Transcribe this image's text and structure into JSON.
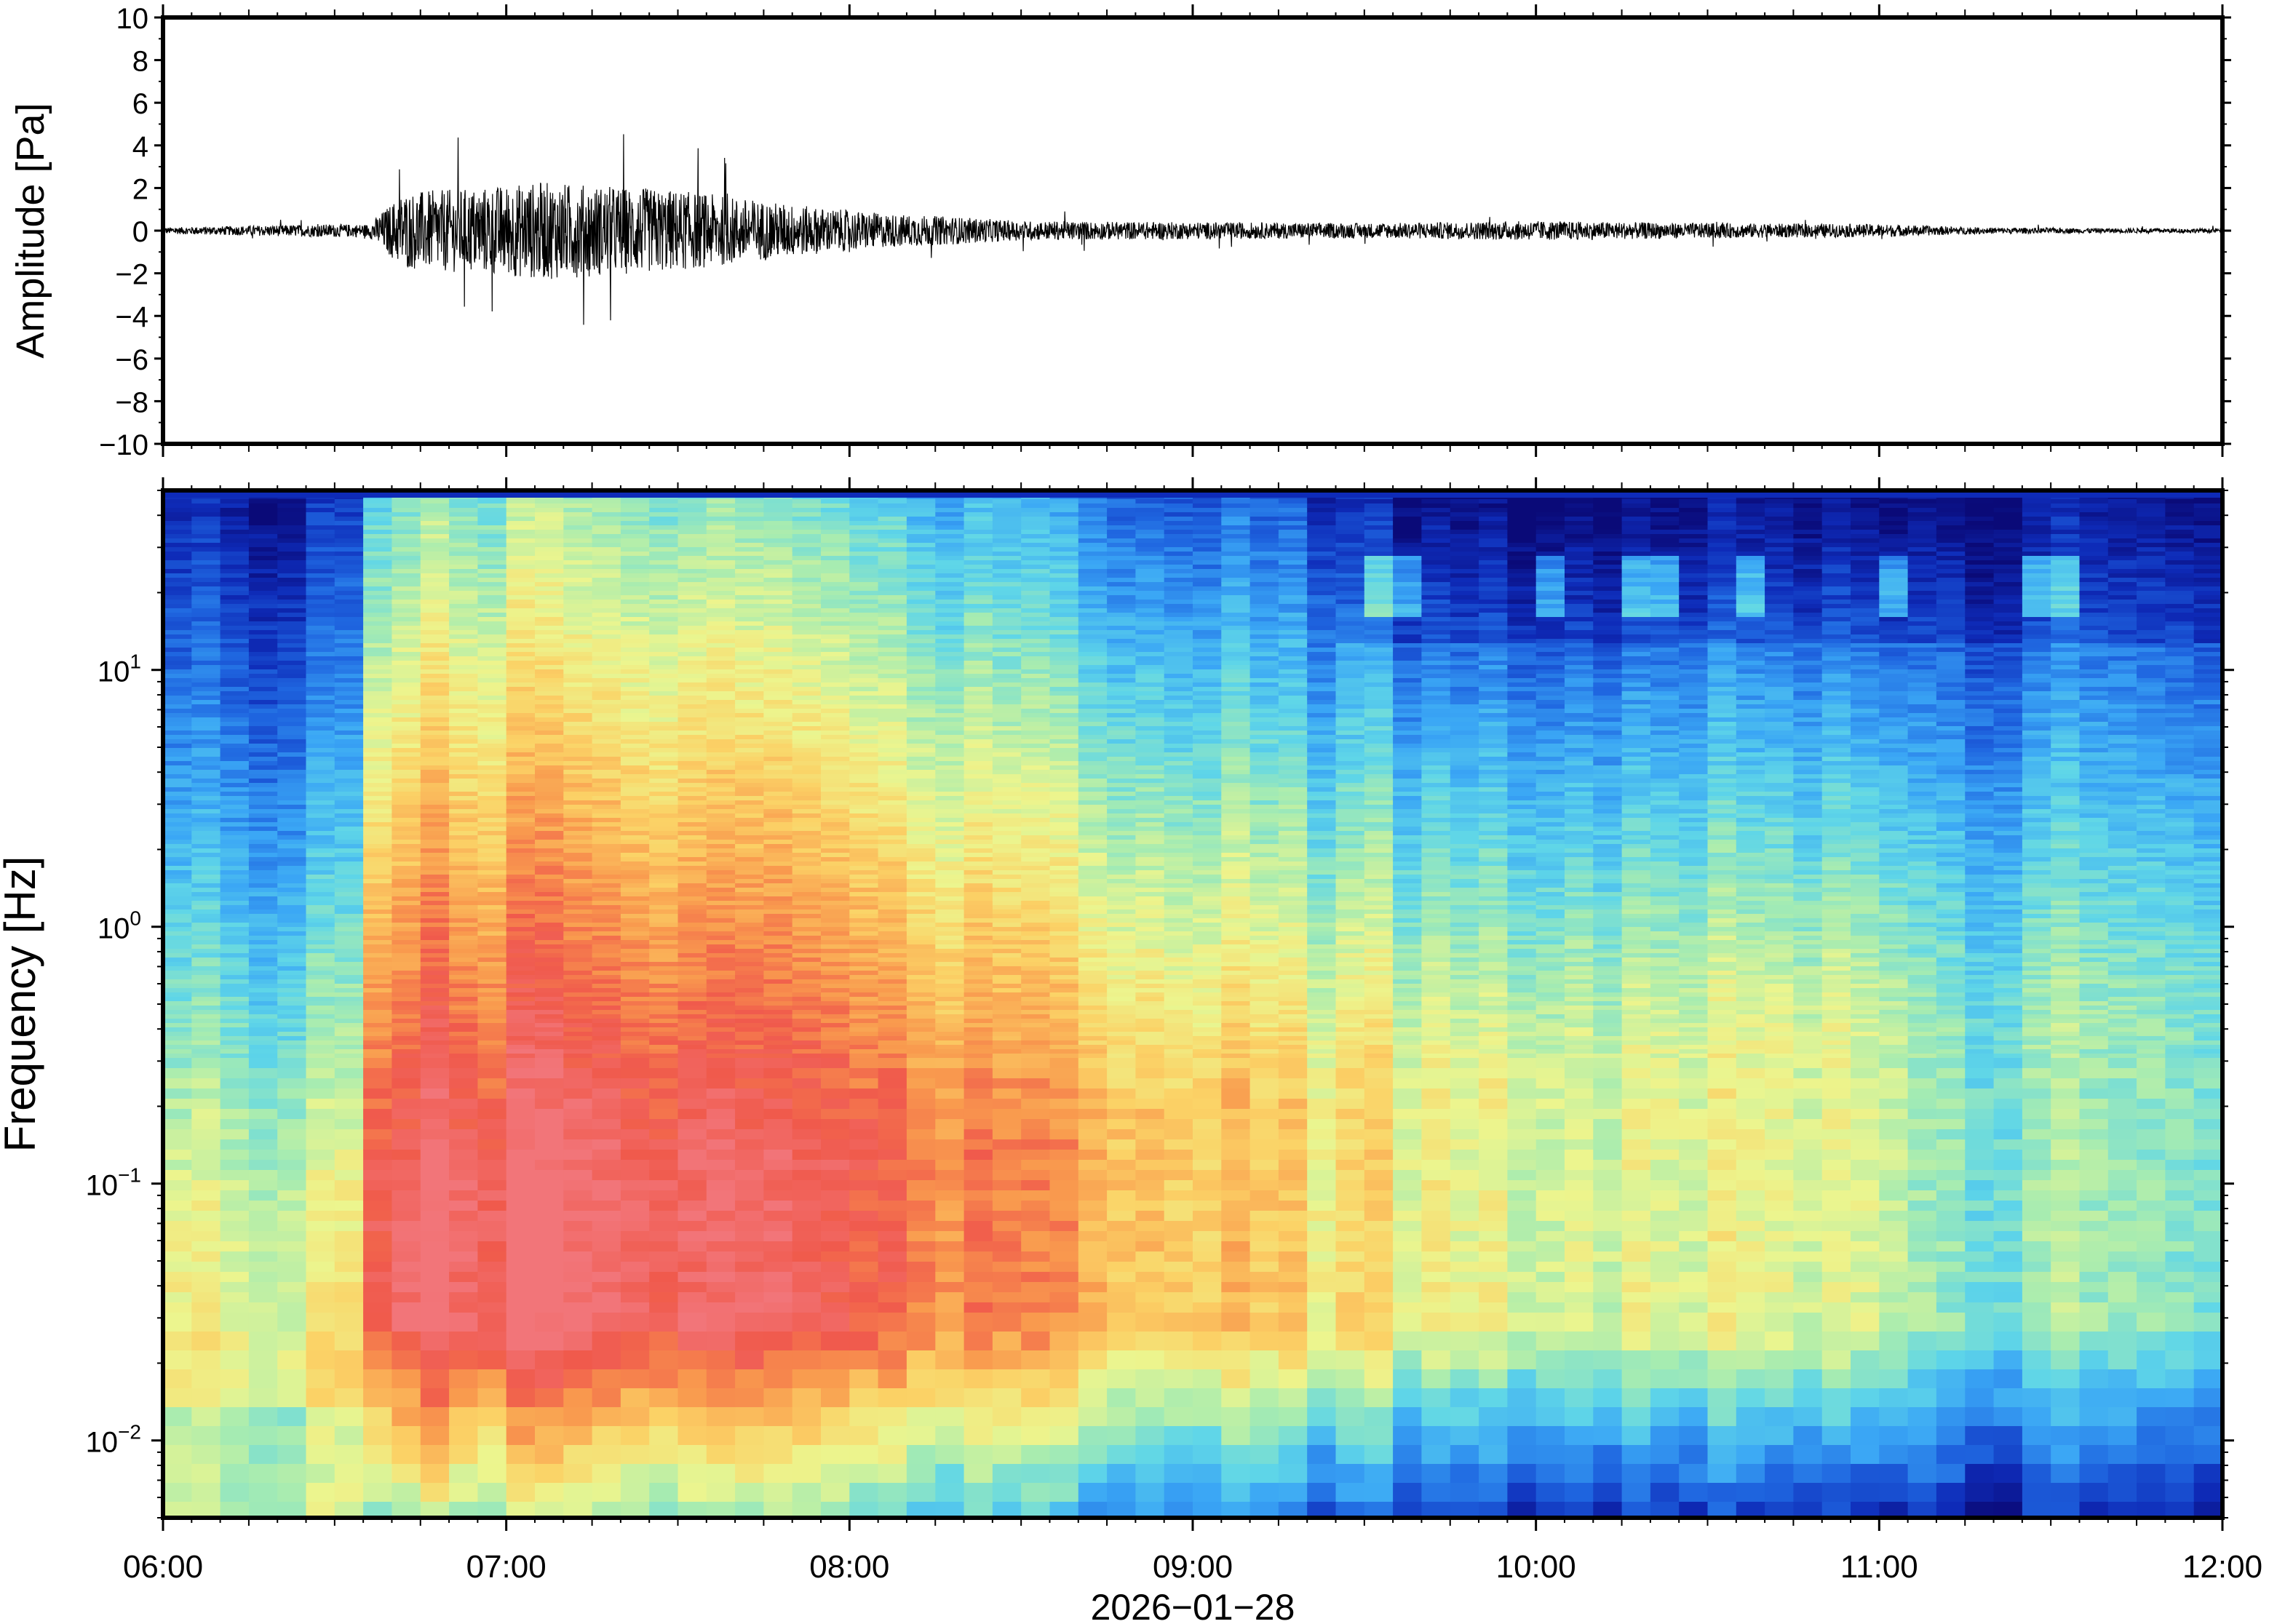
{
  "chart_data": [
    {
      "type": "line",
      "ylabel": "Amplitude [Pa]",
      "ylim": [
        -10,
        10
      ],
      "yticks": [
        {
          "value": 10,
          "label": "10"
        },
        {
          "value": 8,
          "label": "8"
        },
        {
          "value": 6,
          "label": "6"
        },
        {
          "value": 4,
          "label": "4"
        },
        {
          "value": 2,
          "label": "2"
        },
        {
          "value": 0,
          "label": "0"
        },
        {
          "value": -2,
          "label": "−2"
        },
        {
          "value": -4,
          "label": "−4"
        },
        {
          "value": -6,
          "label": "−6"
        },
        {
          "value": -8,
          "label": "−8"
        },
        {
          "value": -10,
          "label": "−10"
        }
      ],
      "x_hours": [
        6,
        12
      ],
      "line_color": "#000000",
      "envelope": {
        "x": [
          6.0,
          6.3,
          6.5,
          6.6,
          6.7,
          6.9,
          7.1,
          7.3,
          7.5,
          7.7,
          7.9,
          8.1,
          8.3,
          8.5,
          9.0,
          9.5,
          10.0,
          10.5,
          11.0,
          11.3,
          11.6,
          12.0
        ],
        "y": [
          0.15,
          0.25,
          0.3,
          0.3,
          1.8,
          2.0,
          2.3,
          2.1,
          1.9,
          1.5,
          1.1,
          0.8,
          0.65,
          0.45,
          0.4,
          0.35,
          0.45,
          0.35,
          0.3,
          0.15,
          0.12,
          0.1
        ]
      }
    },
    {
      "type": "heatmap",
      "ylabel": "Frequency [Hz]",
      "xlabel": "2026−01−28",
      "yscale": "log",
      "ylim": [
        0.005,
        50
      ],
      "yticks": [
        {
          "value": 10,
          "base": "10",
          "exp": "1"
        },
        {
          "value": 1,
          "base": "10",
          "exp": "0"
        },
        {
          "value": 0.1,
          "base": "10",
          "exp": "−1"
        },
        {
          "value": 0.01,
          "base": "10",
          "exp": "−2"
        }
      ],
      "xticks": [
        {
          "value": 6,
          "label": "06:00"
        },
        {
          "value": 7,
          "label": "07:00"
        },
        {
          "value": 8,
          "label": "08:00"
        },
        {
          "value": 9,
          "label": "09:00"
        },
        {
          "value": 10,
          "label": "10:00"
        },
        {
          "value": 11,
          "label": "11:00"
        },
        {
          "value": 12,
          "label": "12:00"
        }
      ],
      "colormap": [
        "#0a0a78",
        "#0e2bb8",
        "#1f66e0",
        "#3aa6f5",
        "#5fd6e8",
        "#a8ecb0",
        "#ecf58e",
        "#fbd266",
        "#f99a4e",
        "#f05a4c",
        "#f27579"
      ],
      "event_start_hour": 6.62,
      "event_peak_hour": 7.2,
      "quiet_after_hour": 11.05
    }
  ]
}
